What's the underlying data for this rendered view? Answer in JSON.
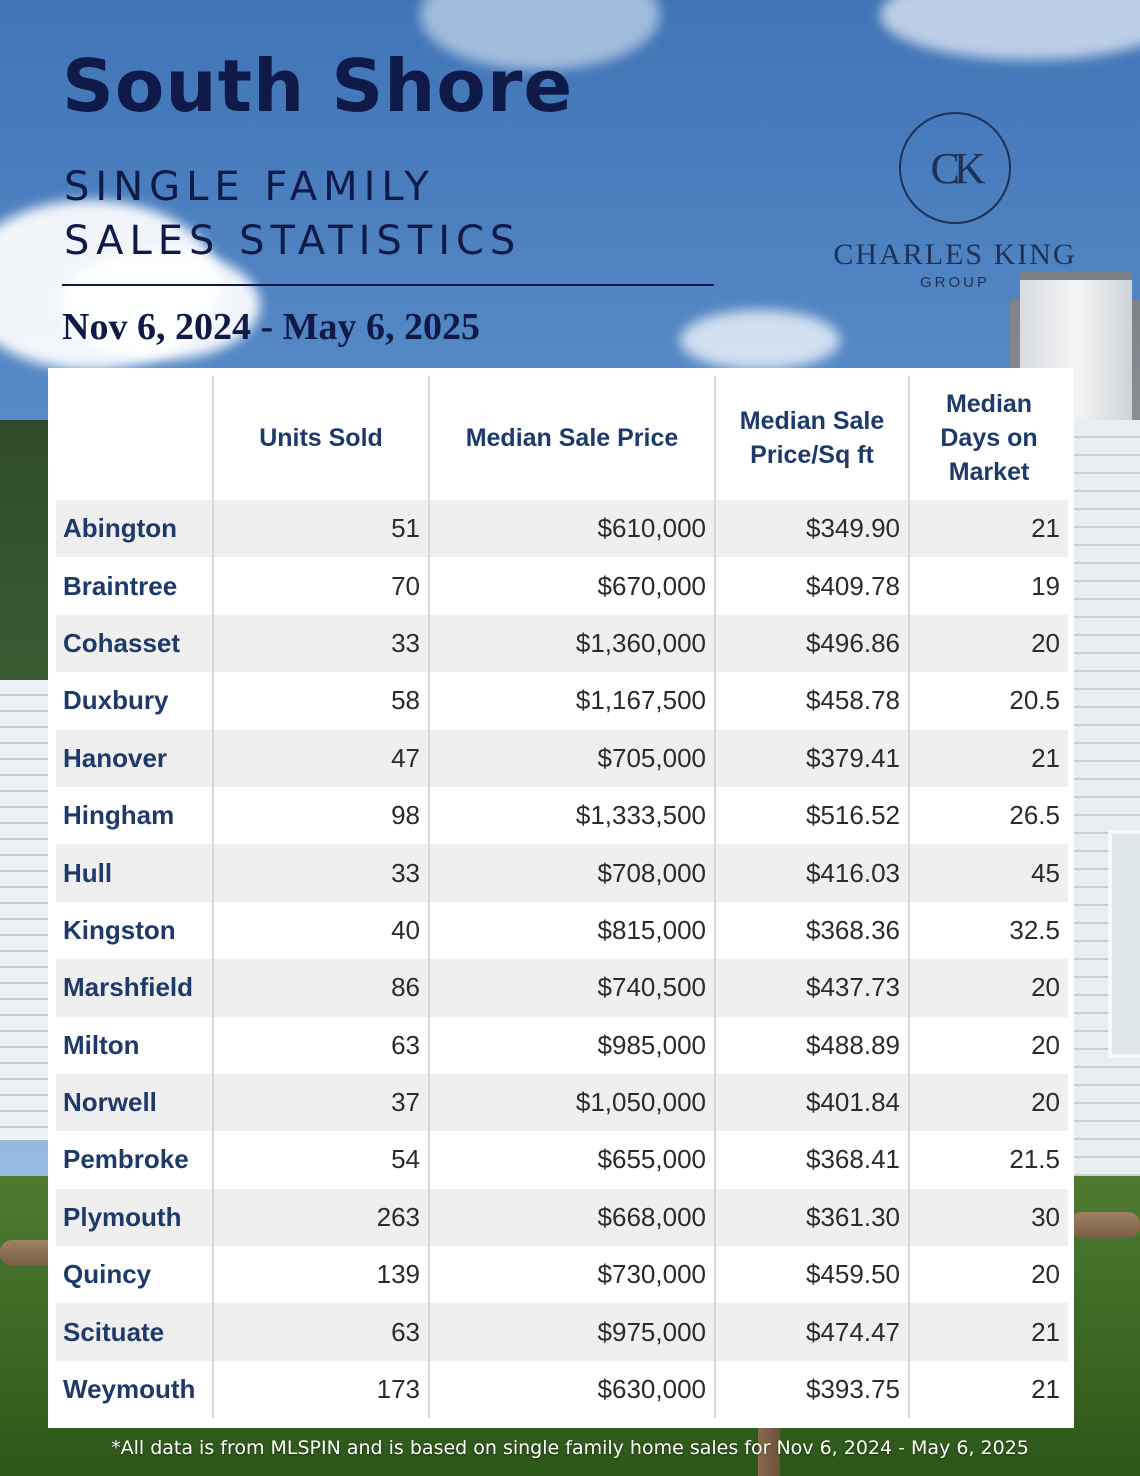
{
  "header": {
    "title": "South Shore",
    "subtitle_line1": "SINGLE FAMILY",
    "subtitle_line2": "SALES STATISTICS",
    "date_range": "Nov 6, 2024 - May 6, 2025"
  },
  "logo": {
    "monogram": "CK",
    "name": "CHARLES KING",
    "group": "GROUP",
    "color": "#1e3158"
  },
  "table": {
    "columns": [
      "",
      "Units Sold",
      "Median Sale Price",
      "Median Sale Price/Sq ft",
      "Median Days on Market"
    ],
    "rows": [
      {
        "town": "Abington",
        "units": "51",
        "price": "$610,000",
        "sqft": "$349.90",
        "dom": "21"
      },
      {
        "town": "Braintree",
        "units": "70",
        "price": "$670,000",
        "sqft": "$409.78",
        "dom": "19"
      },
      {
        "town": "Cohasset",
        "units": "33",
        "price": "$1,360,000",
        "sqft": "$496.86",
        "dom": "20"
      },
      {
        "town": "Duxbury",
        "units": "58",
        "price": "$1,167,500",
        "sqft": "$458.78",
        "dom": "20.5"
      },
      {
        "town": "Hanover",
        "units": "47",
        "price": "$705,000",
        "sqft": "$379.41",
        "dom": "21"
      },
      {
        "town": "Hingham",
        "units": "98",
        "price": "$1,333,500",
        "sqft": "$516.52",
        "dom": "26.5"
      },
      {
        "town": "Hull",
        "units": "33",
        "price": "$708,000",
        "sqft": "$416.03",
        "dom": "45"
      },
      {
        "town": "Kingston",
        "units": "40",
        "price": "$815,000",
        "sqft": "$368.36",
        "dom": "32.5"
      },
      {
        "town": "Marshfield",
        "units": "86",
        "price": "$740,500",
        "sqft": "$437.73",
        "dom": "20"
      },
      {
        "town": "Milton",
        "units": "63",
        "price": "$985,000",
        "sqft": "$488.89",
        "dom": "20"
      },
      {
        "town": "Norwell",
        "units": "37",
        "price": "$1,050,000",
        "sqft": "$401.84",
        "dom": "20"
      },
      {
        "town": "Pembroke",
        "units": "54",
        "price": "$655,000",
        "sqft": "$368.41",
        "dom": "21.5"
      },
      {
        "town": "Plymouth",
        "units": "263",
        "price": "$668,000",
        "sqft": "$361.30",
        "dom": "30"
      },
      {
        "town": "Quincy",
        "units": "139",
        "price": "$730,000",
        "sqft": "$459.50",
        "dom": "20"
      },
      {
        "town": "Scituate",
        "units": "63",
        "price": "$975,000",
        "sqft": "$474.47",
        "dom": "21"
      },
      {
        "town": "Weymouth",
        "units": "173",
        "price": "$630,000",
        "sqft": "$393.75",
        "dom": "21"
      }
    ]
  },
  "footnote": "*All data is from MLSPIN and is based on single family home sales for Nov 6, 2024 - May 6, 2025",
  "colors": {
    "title": "#0f1a48",
    "header_text": "#1e3a6b",
    "stripe": "#efefef"
  }
}
